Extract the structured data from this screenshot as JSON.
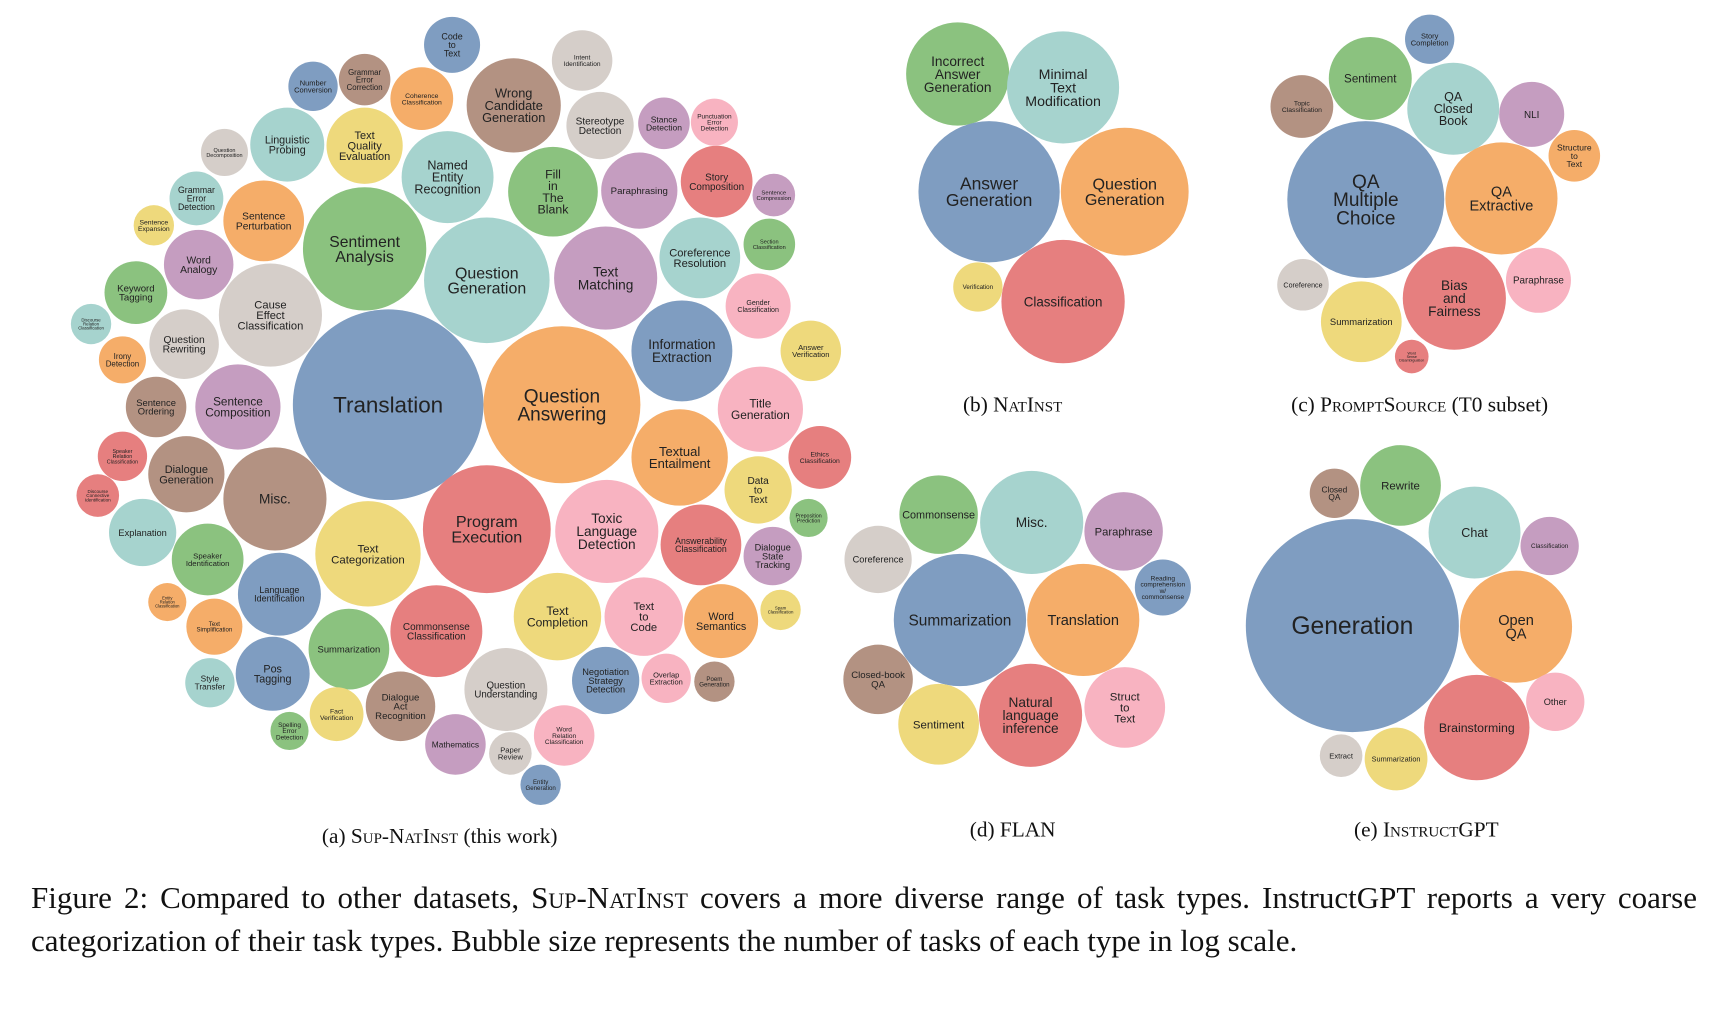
{
  "panels": [
    {
      "caption": [
        "(a)",
        "Sup-NatInst",
        "(this work)"
      ],
      "bubbles": [
        {
          "label": "Translation",
          "color": "#7f9dc1"
        },
        {
          "label": "Question Answering",
          "color": "#f5ad69"
        },
        {
          "label": "Program Execution",
          "color": "#e67f7f"
        },
        {
          "label": "Question Generation",
          "color": "#a6d3ce"
        },
        {
          "label": "Sentiment Analysis",
          "color": "#8bc27f"
        },
        {
          "label": "Text Categorization",
          "color": "#eed97c"
        },
        {
          "label": "Misc.",
          "color": "#b39282"
        },
        {
          "label": "Cause Effect Classification",
          "color": "#d5cec9"
        },
        {
          "label": "Toxic Language Detection",
          "color": "#f8b3c1"
        },
        {
          "label": "Text Matching",
          "color": "#c59dc0"
        },
        {
          "label": "Wrong Candidate Generation",
          "color": "#b39282"
        },
        {
          "label": "Named Entity Recognition",
          "color": "#a6d3ce"
        },
        {
          "label": "Information Extraction",
          "color": "#7f9dc1"
        },
        {
          "label": "Textual Entailment",
          "color": "#f5ad69"
        },
        {
          "label": "Fill in The Blank",
          "color": "#8bc27f"
        },
        {
          "label": "Commonsense Classification",
          "color": "#e67f7f"
        },
        {
          "label": "Question Understanding",
          "color": "#d5cec9"
        },
        {
          "label": "Text Completion",
          "color": "#eed97c"
        },
        {
          "label": "Answerability Classification",
          "color": "#e67f7f"
        },
        {
          "label": "Paraphrasing",
          "color": "#c59dc0"
        },
        {
          "label": "Coreference Resolution",
          "color": "#a6d3ce"
        },
        {
          "label": "Title Generation",
          "color": "#f8b3c1"
        },
        {
          "label": "Summarization",
          "color": "#8bc27f"
        },
        {
          "label": "Language Identification",
          "color": "#7f9dc1"
        },
        {
          "label": "Sentence Composition",
          "color": "#c59dc0"
        },
        {
          "label": "Dialogue Generation",
          "color": "#b39282"
        },
        {
          "label": "Sentence Perturbation",
          "color": "#f5ad69"
        },
        {
          "label": "Linguistic Probing",
          "color": "#a6d3ce"
        },
        {
          "label": "Text Quality Evaluation",
          "color": "#eed97c"
        },
        {
          "label": "Stereotype Detection",
          "color": "#d5cec9"
        },
        {
          "label": "Story Composition",
          "color": "#e67f7f"
        },
        {
          "label": "Text to Code",
          "color": "#f8b3c1"
        },
        {
          "label": "Word Semantics",
          "color": "#f5ad69"
        },
        {
          "label": "Negotiation Strategy Detection",
          "color": "#7f9dc1"
        },
        {
          "label": "Dialogue Act Recognition",
          "color": "#b39282"
        },
        {
          "label": "Pos Tagging",
          "color": "#7f9dc1"
        },
        {
          "label": "Speaker Identification",
          "color": "#8bc27f"
        },
        {
          "label": "Explanation",
          "color": "#a6d3ce"
        },
        {
          "label": "Question Rewriting",
          "color": "#d5cec9"
        },
        {
          "label": "Word Analogy",
          "color": "#c59dc0"
        },
        {
          "label": "Keyword Tagging",
          "color": "#8bc27f"
        },
        {
          "label": "Sentence Ordering",
          "color": "#b39282"
        },
        {
          "label": "Coherence Classification",
          "color": "#f5ad69"
        },
        {
          "label": "Intent Identification",
          "color": "#d5cec9"
        },
        {
          "label": "Data to Text",
          "color": "#eed97c"
        },
        {
          "label": "Answer Verification",
          "color": "#eed97c"
        },
        {
          "label": "Gender Classification",
          "color": "#f8b3c1"
        },
        {
          "label": "Dialogue State Tracking",
          "color": "#c59dc0"
        },
        {
          "label": "Ethics Classification",
          "color": "#e67f7f"
        },
        {
          "label": "Word Relation Classification",
          "color": "#f8b3c1"
        },
        {
          "label": "Mathematics",
          "color": "#c59dc0"
        },
        {
          "label": "Fact Verification",
          "color": "#eed97c"
        },
        {
          "label": "Text Simplification",
          "color": "#f5ad69"
        },
        {
          "label": "Style Transfer",
          "color": "#a6d3ce"
        },
        {
          "label": "Spelling Error Detection",
          "color": "#8bc27f"
        },
        {
          "label": "Grammar Error Correction",
          "color": "#b39282"
        },
        {
          "label": "Number Conversion",
          "color": "#7f9dc1"
        },
        {
          "label": "Code to Text",
          "color": "#7f9dc1"
        },
        {
          "label": "Stance Detection",
          "color": "#c59dc0"
        },
        {
          "label": "Punctuation Error Detection",
          "color": "#f8b3c1"
        },
        {
          "label": "Sentence Compression",
          "color": "#c59dc0"
        },
        {
          "label": "Section Classification",
          "color": "#8bc27f"
        },
        {
          "label": "Preposition Prediction",
          "color": "#8bc27f"
        },
        {
          "label": "Spam Classification",
          "color": "#eed97c"
        },
        {
          "label": "Poem Generation",
          "color": "#b39282"
        },
        {
          "label": "Overlap Extraction",
          "color": "#f8b3c1"
        },
        {
          "label": "Paper Review",
          "color": "#d5cec9"
        },
        {
          "label": "Entity Generation",
          "color": "#7f9dc1"
        },
        {
          "label": "Question Decomposition",
          "color": "#d5cec9"
        },
        {
          "label": "Grammar Error Detection",
          "color": "#a6d3ce"
        },
        {
          "label": "Sentence Expansion",
          "color": "#eed97c"
        },
        {
          "label": "Discourse Relation Classification",
          "color": "#a6d3ce"
        },
        {
          "label": "Irony Detection",
          "color": "#f5ad69"
        },
        {
          "label": "Speaker Relation Classification",
          "color": "#e67f7f"
        },
        {
          "label": "Discourse Connective Identification",
          "color": "#e67f7f"
        },
        {
          "label": "Entity Relation Classification",
          "color": "#f5ad69"
        }
      ]
    },
    {
      "caption": [
        "(b)",
        "NatInst"
      ],
      "bubbles": [
        {
          "label": "Incorrect Answer Generation",
          "color": "#8bc27f"
        },
        {
          "label": "Minimal Text Modification",
          "color": "#a6d3ce"
        },
        {
          "label": "Answer Generation",
          "color": "#7f9dc1"
        },
        {
          "label": "Question Generation",
          "color": "#f5ad69"
        },
        {
          "label": "Classification",
          "color": "#e67f7f"
        },
        {
          "label": "Verification",
          "color": "#eed97c"
        }
      ]
    },
    {
      "caption": [
        "(c)",
        "PromptSource",
        "(T0 subset)"
      ],
      "bubbles": [
        {
          "label": "Story Completion",
          "color": "#7f9dc1"
        },
        {
          "label": "Sentiment",
          "color": "#8bc27f"
        },
        {
          "label": "Topic Classification",
          "color": "#b39282"
        },
        {
          "label": "QA Closed Book",
          "color": "#a6d3ce"
        },
        {
          "label": "NLI",
          "color": "#c59dc0"
        },
        {
          "label": "Structure to Text",
          "color": "#f5ad69"
        },
        {
          "label": "QA Multiple Choice",
          "color": "#7f9dc1"
        },
        {
          "label": "QA Extractive",
          "color": "#f5ad69"
        },
        {
          "label": "Coreference",
          "color": "#d5cec9"
        },
        {
          "label": "Bias and Fairness",
          "color": "#e67f7f"
        },
        {
          "label": "Paraphrase",
          "color": "#f8b3c1"
        },
        {
          "label": "Summarization",
          "color": "#eed97c"
        },
        {
          "label": "Word Sense Disambiguation",
          "color": "#e67f7f"
        }
      ]
    },
    {
      "caption": [
        "(d)",
        "FLAN"
      ],
      "bubbles": [
        {
          "label": "Commonsense",
          "color": "#8bc27f"
        },
        {
          "label": "Misc.",
          "color": "#a6d3ce"
        },
        {
          "label": "Paraphrase",
          "color": "#c59dc0"
        },
        {
          "label": "Coreference",
          "color": "#d5cec9"
        },
        {
          "label": "Reading comprehension w/ commonsense",
          "color": "#7f9dc1"
        },
        {
          "label": "Summarization",
          "color": "#7f9dc1"
        },
        {
          "label": "Translation",
          "color": "#f5ad69"
        },
        {
          "label": "Closed-book QA",
          "color": "#b39282"
        },
        {
          "label": "Sentiment",
          "color": "#eed97c"
        },
        {
          "label": "Natural language inference",
          "color": "#e67f7f"
        },
        {
          "label": "Struct to Text",
          "color": "#f8b3c1"
        }
      ]
    },
    {
      "caption": [
        "(e)",
        "InstructGPT"
      ],
      "bubbles": [
        {
          "label": "Closed QA",
          "color": "#b39282"
        },
        {
          "label": "Rewrite",
          "color": "#8bc27f"
        },
        {
          "label": "Chat",
          "color": "#a6d3ce"
        },
        {
          "label": "Classification",
          "color": "#c59dc0"
        },
        {
          "label": "Generation",
          "color": "#7f9dc1"
        },
        {
          "label": "Open QA",
          "color": "#f5ad69"
        },
        {
          "label": "Other",
          "color": "#f8b3c1"
        },
        {
          "label": "Brainstorming",
          "color": "#e67f7f"
        },
        {
          "label": "Extract",
          "color": "#d5cec9"
        },
        {
          "label": "Summarization",
          "color": "#eed97c"
        }
      ]
    }
  ],
  "figure_caption": [
    "Figure 2:  Compared to other datasets, ",
    "Sup-NatInst",
    " covers a more diverse range of task types.  InstructGPT reports a very coarse categorization of their task types. Bubble size represents the number of tasks of each type in log scale."
  ]
}
